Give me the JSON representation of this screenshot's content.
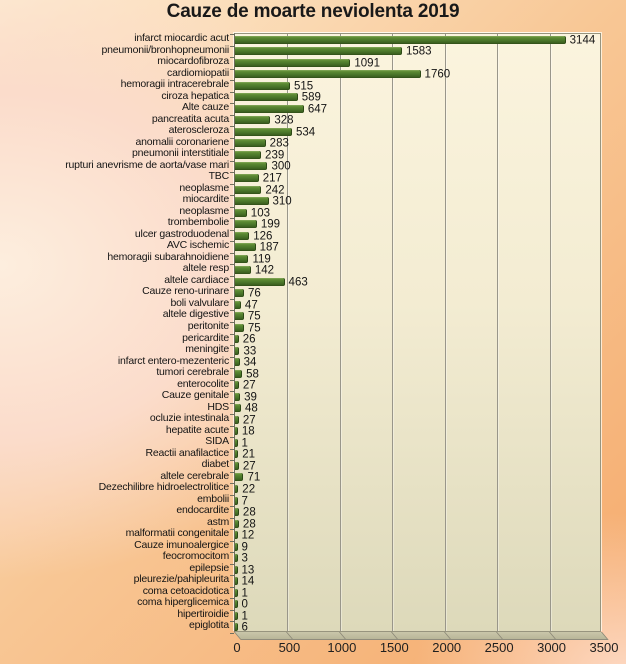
{
  "title": "Cauze de moarte neviolenta 2019",
  "colors": {
    "bar_green": "#4c782b",
    "bar_highlight": "#87ac5c",
    "bar_shadow": "#2e4c16",
    "plot_bg_top": "#fbf4de",
    "plot_bg_bottom": "#ddd9ba",
    "gridline": "#99968a",
    "background_center": "#fdeede",
    "background_edge": "#f5aa6c",
    "text": "#141414"
  },
  "chart_data": {
    "type": "bar",
    "orientation": "horizontal",
    "title": "Cauze de moarte neviolenta 2019",
    "xlabel": "",
    "ylabel": "",
    "xlim": [
      0,
      3500
    ],
    "x_ticks": [
      0,
      500,
      1000,
      1500,
      2000,
      2500,
      3000,
      3500
    ],
    "grid": true,
    "data_labels": true,
    "legend": "none",
    "categories": [
      "infarct miocardic acut",
      "pneumonii/bronhopneumonii",
      "miocardofibroza",
      "cardiomiopatii",
      "hemoragii intracerebrale",
      "ciroza hepatica",
      "Alte cauze",
      "pancreatita acuta",
      "ateroscleroza",
      "anomalii coronariene",
      "pneumonii interstitiale",
      "rupturi anevrisme de aorta/vase mari",
      "TBC",
      "neoplasme",
      "miocardite",
      "neoplasme",
      "trombembolie",
      "ulcer gastroduodenal",
      "AVC ischemic",
      "hemoragii subarahnoidiene",
      "altele resp",
      "altele cardiace",
      "Cauze reno-urinare",
      "boli valvulare",
      "altele digestive",
      "peritonite",
      "pericardite",
      "meningite",
      "infarct entero-mezenteric",
      "tumori cerebrale",
      "enterocolite",
      "Cauze genitale",
      "HDS",
      "ocluzie intestinala",
      "hepatite acute",
      "SIDA",
      "Reactii anafilactice",
      "diabet",
      "altele cerebrale",
      "Dezechilibre hidroelectrolitice",
      "embolii",
      "endocardite",
      "astm",
      "malformatii congenitale",
      "Cauze imunoalergice",
      "feocromocitom",
      "epilepsie",
      "pleurezie/pahipleurita",
      "coma cetoacidotica",
      "coma hiperglicemica",
      "hipertiroidie",
      "epiglotita"
    ],
    "values": [
      3144,
      1583,
      1091,
      1760,
      515,
      589,
      647,
      328,
      534,
      283,
      239,
      300,
      217,
      242,
      310,
      103,
      199,
      126,
      187,
      119,
      142,
      463,
      76,
      47,
      75,
      75,
      26,
      33,
      34,
      58,
      27,
      39,
      48,
      27,
      18,
      1,
      21,
      27,
      71,
      22,
      7,
      28,
      28,
      12,
      9,
      3,
      13,
      14,
      1,
      0,
      1,
      6
    ]
  }
}
